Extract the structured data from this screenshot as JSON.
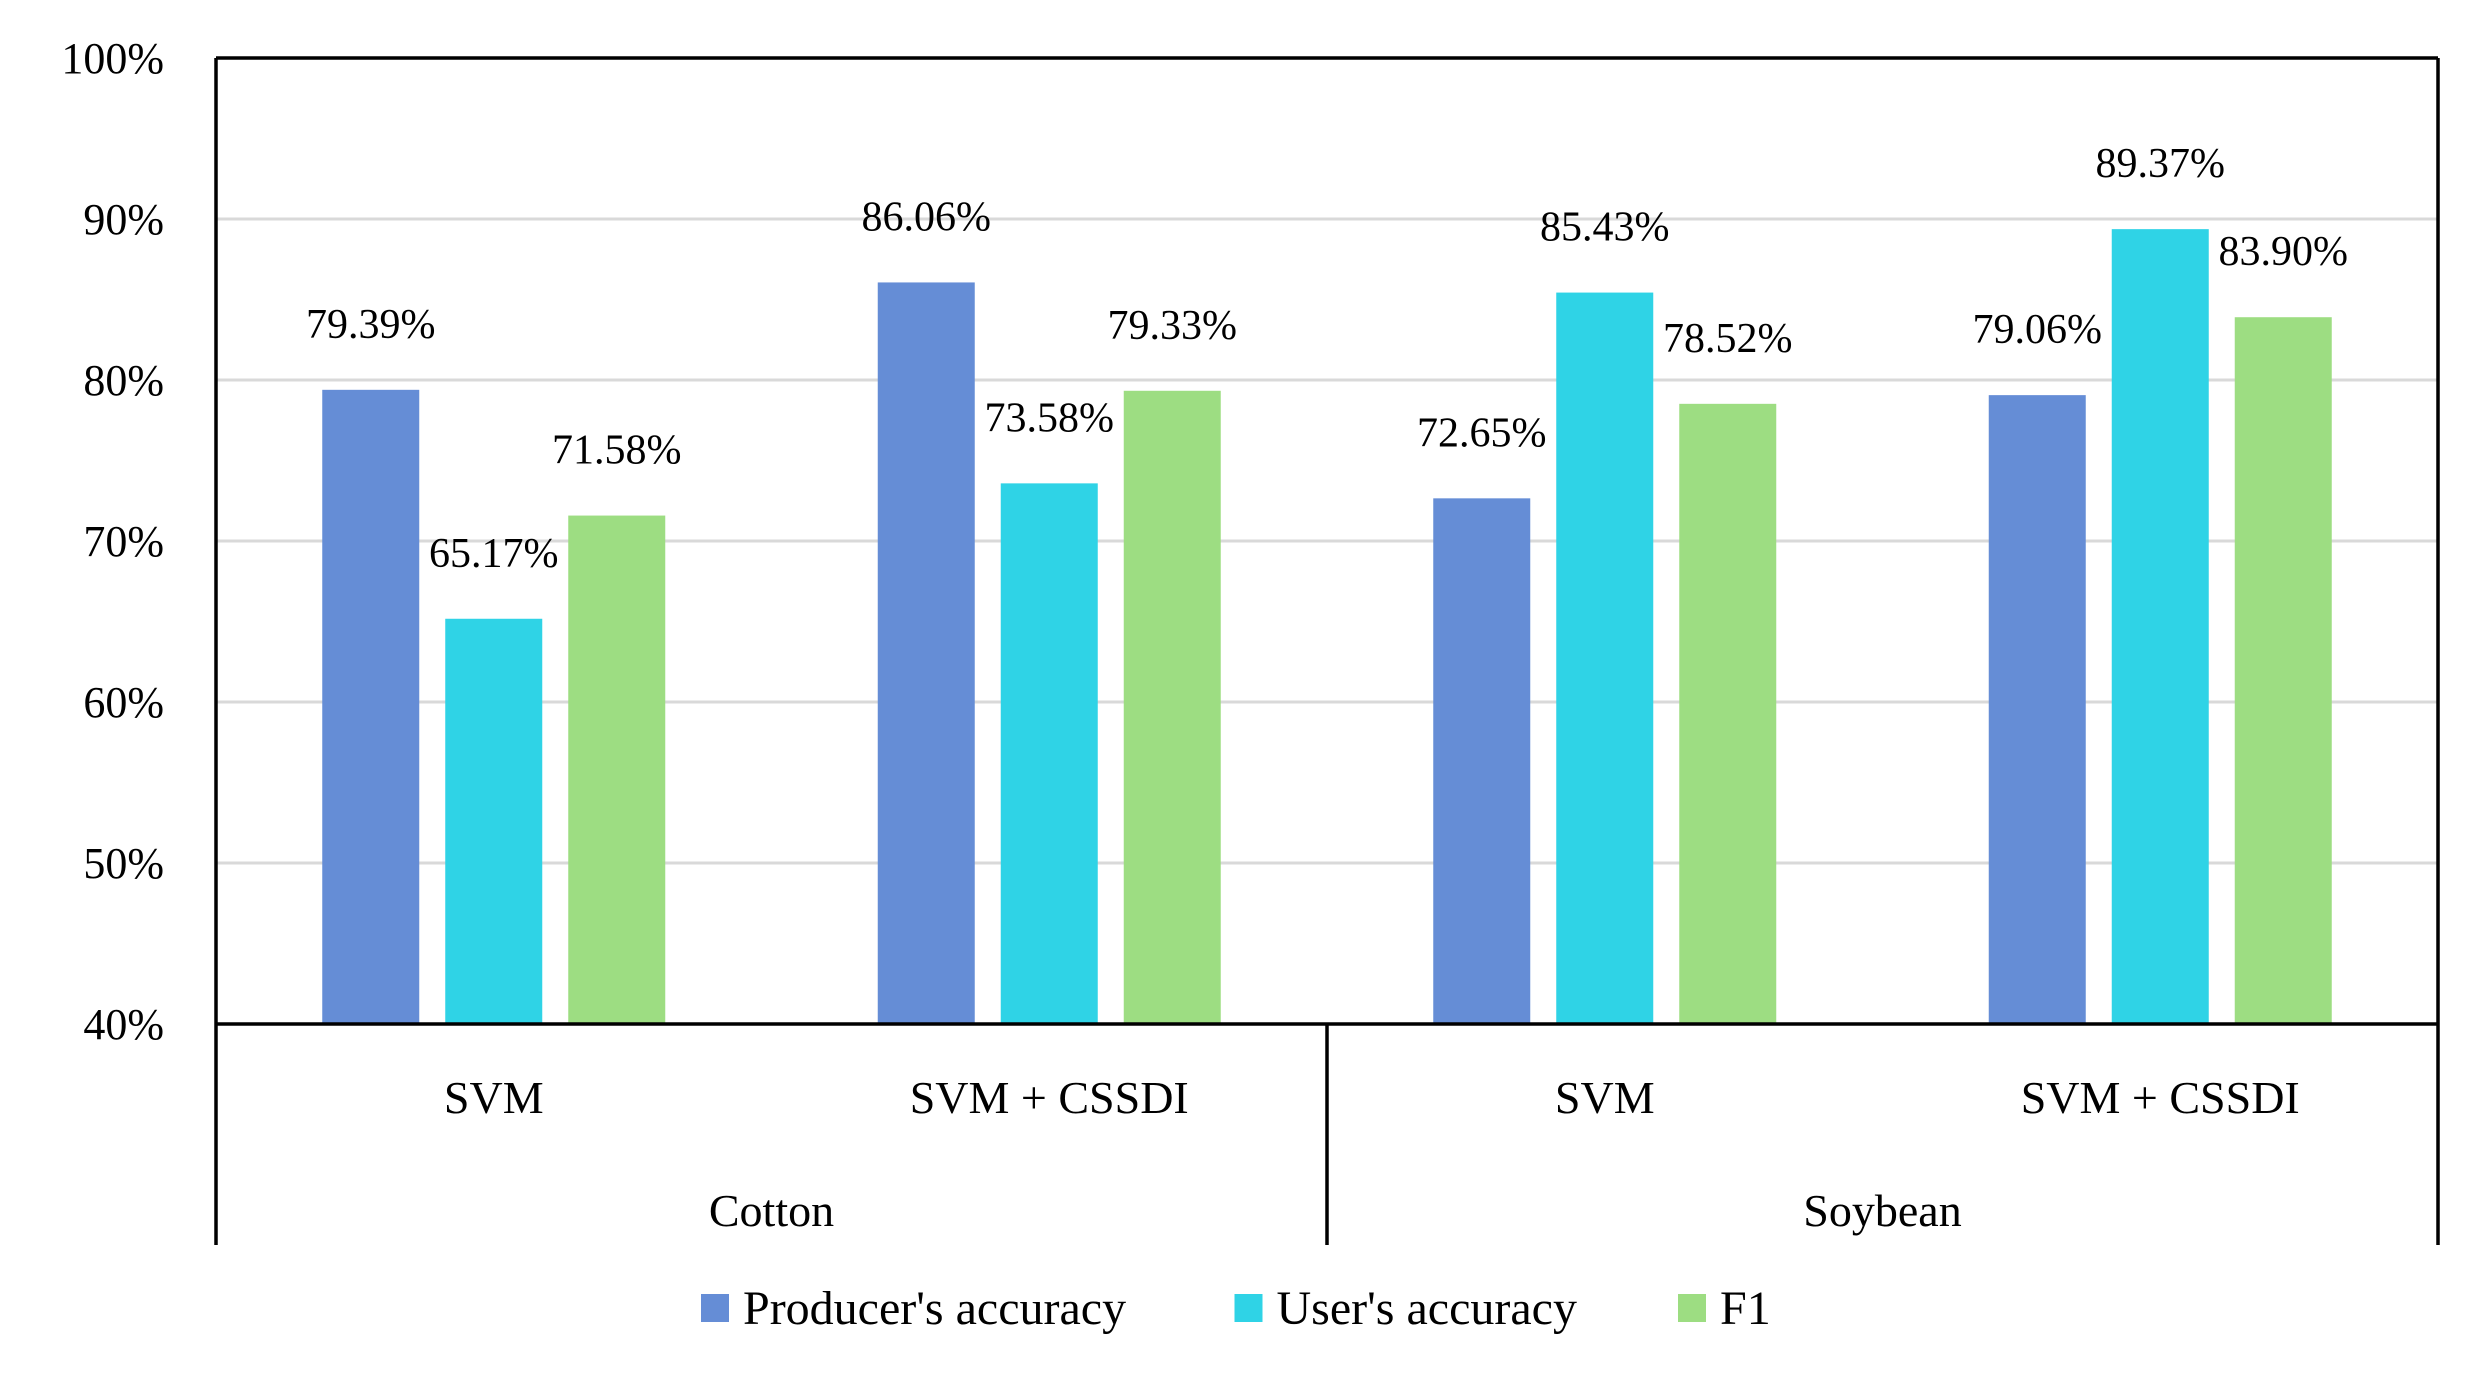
{
  "chart_data": {
    "type": "bar",
    "title": "",
    "xlabel": "",
    "ylabel": "",
    "ylim": [
      40,
      100
    ],
    "yticks": [
      "40%",
      "50%",
      "60%",
      "70%",
      "80%",
      "90%",
      "100%"
    ],
    "ytick_values": [
      40,
      50,
      60,
      70,
      80,
      90,
      100
    ],
    "grid": true,
    "legend_position": "bottom",
    "groups": [
      {
        "name": "Cotton",
        "categories": [
          "SVM",
          "SVM + CSSDI"
        ]
      },
      {
        "name": "Soybean",
        "categories": [
          "SVM",
          "SVM + CSSDI"
        ]
      }
    ],
    "categories": [
      "SVM",
      "SVM + CSSDI",
      "SVM",
      "SVM + CSSDI"
    ],
    "series": [
      {
        "name": "Producer's accuracy",
        "color": "#658dd6",
        "values": [
          79.39,
          86.06,
          72.65,
          79.06
        ],
        "labels": [
          "79.39%",
          "86.06%",
          "72.65%",
          "79.06%"
        ]
      },
      {
        "name": "User's accuracy",
        "color": "#2fd3e6",
        "values": [
          65.17,
          73.58,
          85.43,
          89.37
        ],
        "labels": [
          "65.17%",
          "73.58%",
          "85.43%",
          "89.37%"
        ]
      },
      {
        "name": "F1",
        "color": "#9ddd82",
        "values": [
          71.58,
          79.33,
          78.52,
          83.9
        ],
        "labels": [
          "71.58%",
          "79.33%",
          "78.52%",
          "83.90%"
        ]
      }
    ]
  }
}
